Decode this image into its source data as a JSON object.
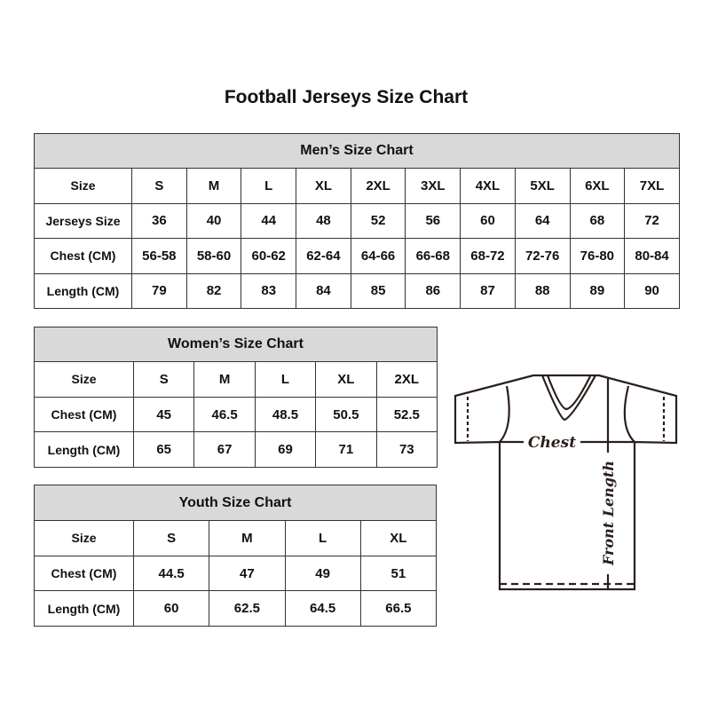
{
  "title": "Football Jerseys Size Chart",
  "men": {
    "title": "Men’s Size Chart",
    "rows": [
      [
        "Size",
        "S",
        "M",
        "L",
        "XL",
        "2XL",
        "3XL",
        "4XL",
        "5XL",
        "6XL",
        "7XL"
      ],
      [
        "Jerseys Size",
        "36",
        "40",
        "44",
        "48",
        "52",
        "56",
        "60",
        "64",
        "68",
        "72"
      ],
      [
        "Chest (CM)",
        "56-58",
        "58-60",
        "60-62",
        "62-64",
        "64-66",
        "66-68",
        "68-72",
        "72-76",
        "76-80",
        "80-84"
      ],
      [
        "Length (CM)",
        "79",
        "82",
        "83",
        "84",
        "85",
        "86",
        "87",
        "88",
        "89",
        "90"
      ]
    ]
  },
  "women": {
    "title": "Women’s Size Chart",
    "rows": [
      [
        "Size",
        "S",
        "M",
        "L",
        "XL",
        "2XL"
      ],
      [
        "Chest (CM)",
        "45",
        "46.5",
        "48.5",
        "50.5",
        "52.5"
      ],
      [
        "Length (CM)",
        "65",
        "67",
        "69",
        "71",
        "73"
      ]
    ]
  },
  "youth": {
    "title": "Youth Size Chart",
    "rows": [
      [
        "Size",
        "S",
        "M",
        "L",
        "XL"
      ],
      [
        "Chest (CM)",
        "44.5",
        "47",
        "49",
        "51"
      ],
      [
        "Length (CM)",
        "60",
        "62.5",
        "64.5",
        "66.5"
      ]
    ]
  },
  "diagram": {
    "chest_label": "Chest",
    "length_label": "Front Length"
  },
  "colors": {
    "header_bg": "#d9d9d9",
    "border": "#333333"
  }
}
